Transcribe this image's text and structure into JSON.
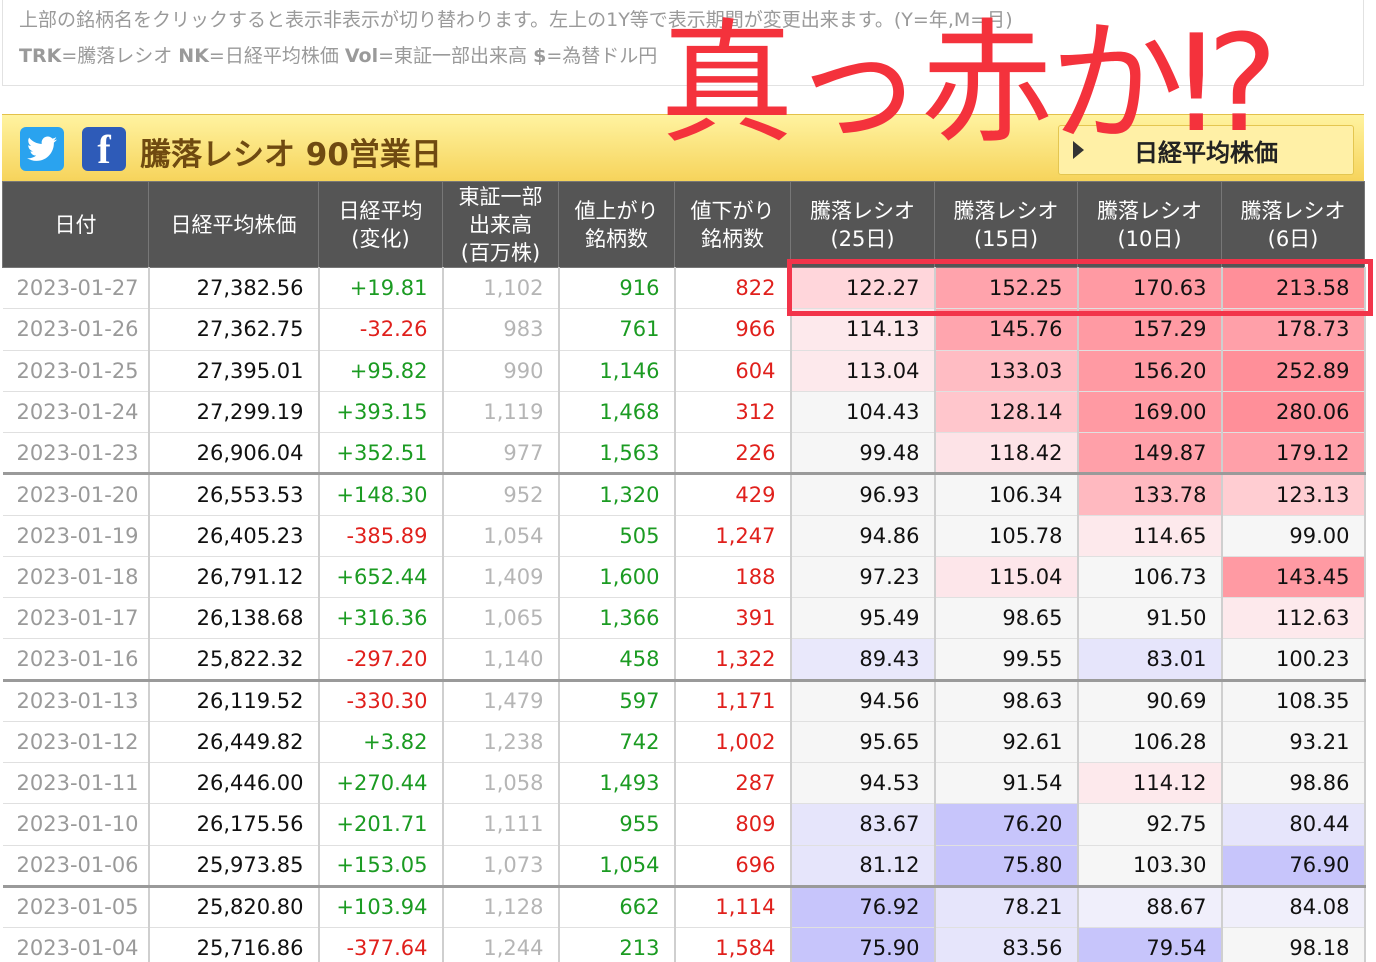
{
  "info": {
    "line1": "上部の銘柄名をクリックすると表示非表示が切り替わります。左上の1Y等で表示期間が変更出来ます。(Y=年,M=月)",
    "line2_key1": "TRK",
    "line2_val1": "=騰落レシオ ",
    "line2_key2": "NK",
    "line2_val2": "=日経平均株価 ",
    "line2_key3": "Vol",
    "line2_val3": "=東証一部出来高 ",
    "line2_key4": "$",
    "line2_val4": "=為替ドル円"
  },
  "panel": {
    "title": "騰落レシオ 90営業日",
    "button": "日経平均株価",
    "twitter_icon": "twitter-icon",
    "facebook_icon": "facebook-icon",
    "facebook_glyph": "f"
  },
  "overlay_text": "真っ赤か⁉",
  "table": {
    "headers": [
      "日付",
      "日経平均株価",
      "日経平均\n(変化)",
      "東証一部\n出来高\n(百万株)",
      "値上がり\n銘柄数",
      "値下がり\n銘柄数",
      "騰落レシオ\n(25日)",
      "騰落レシオ\n(15日)",
      "騰落レシオ\n(10日)",
      "騰落レシオ\n(6日)"
    ],
    "rows": [
      {
        "date": "2023-01-27",
        "nk": "27,382.56",
        "chg": "+19.81",
        "vol": "1,102",
        "up": "916",
        "down": "822",
        "r25": "122.27",
        "r15": "152.25",
        "r10": "170.63",
        "r6": "213.58",
        "bg": [
          "#ffd6db",
          "#ffa3ac",
          "#ff9aa3",
          "#ff8f99"
        ]
      },
      {
        "date": "2023-01-26",
        "nk": "27,362.75",
        "chg": "-32.26",
        "vol": "983",
        "up": "761",
        "down": "966",
        "r25": "114.13",
        "r15": "145.76",
        "r10": "157.29",
        "r6": "178.73",
        "bg": [
          "#fde9ec",
          "#ffa5ae",
          "#ff9aa3",
          "#ffa0a9"
        ]
      },
      {
        "date": "2023-01-25",
        "nk": "27,395.01",
        "chg": "+95.82",
        "vol": "990",
        "up": "1,146",
        "down": "604",
        "r25": "113.04",
        "r15": "133.03",
        "r10": "156.20",
        "r6": "252.89",
        "bg": [
          "#fde9ec",
          "#ffbcc3",
          "#ff9aa3",
          "#ff8f99"
        ]
      },
      {
        "date": "2023-01-24",
        "nk": "27,299.19",
        "chg": "+393.15",
        "vol": "1,119",
        "up": "1,468",
        "down": "312",
        "r25": "104.43",
        "r15": "128.14",
        "r10": "169.00",
        "r6": "280.06",
        "bg": [
          "#f6f6f6",
          "#ffc6cc",
          "#ff9aa3",
          "#ff8f99"
        ]
      },
      {
        "date": "2023-01-23",
        "nk": "26,906.04",
        "chg": "+352.51",
        "vol": "977",
        "up": "1,563",
        "down": "226",
        "r25": "99.48",
        "r15": "118.42",
        "r10": "149.87",
        "r6": "179.12",
        "bg": [
          "#f6f6f6",
          "#fde3e7",
          "#ffa0a9",
          "#ffa0a9"
        ]
      },
      {
        "date": "2023-01-20",
        "nk": "26,553.53",
        "chg": "+148.30",
        "vol": "952",
        "up": "1,320",
        "down": "429",
        "r25": "96.93",
        "r15": "106.34",
        "r10": "133.78",
        "r6": "123.13",
        "bg": [
          "#f6f6f6",
          "#f6f6f6",
          "#ffb9c0",
          "#ffcdd2"
        ],
        "week_end": true
      },
      {
        "date": "2023-01-19",
        "nk": "26,405.23",
        "chg": "-385.89",
        "vol": "1,054",
        "up": "505",
        "down": "1,247",
        "r25": "94.86",
        "r15": "105.78",
        "r10": "114.65",
        "r6": "99.00",
        "bg": [
          "#f6f6f6",
          "#f6f6f6",
          "#fde9ec",
          "#f6f6f6"
        ]
      },
      {
        "date": "2023-01-18",
        "nk": "26,791.12",
        "chg": "+652.44",
        "vol": "1,409",
        "up": "1,600",
        "down": "188",
        "r25": "97.23",
        "r15": "115.04",
        "r10": "106.73",
        "r6": "143.45",
        "bg": [
          "#f6f6f6",
          "#fde6ea",
          "#f6f6f6",
          "#ff9aa3"
        ]
      },
      {
        "date": "2023-01-17",
        "nk": "26,138.68",
        "chg": "+316.36",
        "vol": "1,065",
        "up": "1,366",
        "down": "391",
        "r25": "95.49",
        "r15": "98.65",
        "r10": "91.50",
        "r6": "112.63",
        "bg": [
          "#f6f6f6",
          "#f6f6f6",
          "#f6f6f6",
          "#fde9ec"
        ]
      },
      {
        "date": "2023-01-16",
        "nk": "25,822.32",
        "chg": "-297.20",
        "vol": "1,140",
        "up": "458",
        "down": "1,322",
        "r25": "89.43",
        "r15": "99.55",
        "r10": "83.01",
        "r6": "100.23",
        "bg": [
          "#e9e8fb",
          "#f6f6f6",
          "#e6e5fb",
          "#f6f6f6"
        ]
      },
      {
        "date": "2023-01-13",
        "nk": "26,119.52",
        "chg": "-330.30",
        "vol": "1,479",
        "up": "597",
        "down": "1,171",
        "r25": "94.56",
        "r15": "98.63",
        "r10": "90.69",
        "r6": "108.35",
        "bg": [
          "#f6f6f6",
          "#f6f6f6",
          "#f6f6f6",
          "#f6f6f6"
        ],
        "week_end": true
      },
      {
        "date": "2023-01-12",
        "nk": "26,449.82",
        "chg": "+3.82",
        "vol": "1,238",
        "up": "742",
        "down": "1,002",
        "r25": "95.65",
        "r15": "92.61",
        "r10": "106.28",
        "r6": "93.21",
        "bg": [
          "#f6f6f6",
          "#f6f6f6",
          "#f6f6f6",
          "#f6f6f6"
        ]
      },
      {
        "date": "2023-01-11",
        "nk": "26,446.00",
        "chg": "+270.44",
        "vol": "1,058",
        "up": "1,493",
        "down": "287",
        "r25": "94.53",
        "r15": "91.54",
        "r10": "114.12",
        "r6": "98.86",
        "bg": [
          "#f6f6f6",
          "#f6f6f6",
          "#fde9ec",
          "#f6f6f6"
        ]
      },
      {
        "date": "2023-01-10",
        "nk": "26,175.56",
        "chg": "+201.71",
        "vol": "1,111",
        "up": "955",
        "down": "809",
        "r25": "83.67",
        "r15": "76.20",
        "r10": "92.75",
        "r6": "80.44",
        "bg": [
          "#e6e5fb",
          "#c7c5fb",
          "#f6f6f6",
          "#e6e5fb"
        ]
      },
      {
        "date": "2023-01-06",
        "nk": "25,973.85",
        "chg": "+153.05",
        "vol": "1,073",
        "up": "1,054",
        "down": "696",
        "r25": "81.12",
        "r15": "75.80",
        "r10": "103.30",
        "r6": "76.90",
        "bg": [
          "#e6e5fb",
          "#c7c5fb",
          "#f6f6f6",
          "#c7c5fb"
        ]
      },
      {
        "date": "2023-01-05",
        "nk": "25,820.80",
        "chg": "+103.94",
        "vol": "1,128",
        "up": "662",
        "down": "1,114",
        "r25": "76.92",
        "r15": "78.21",
        "r10": "88.67",
        "r6": "84.08",
        "bg": [
          "#c7c5fb",
          "#e6e5fb",
          "#f0effb",
          "#f0effb"
        ],
        "week_end": true
      },
      {
        "date": "2023-01-04",
        "nk": "25,716.86",
        "chg": "-377.64",
        "vol": "1,244",
        "up": "213",
        "down": "1,584",
        "r25": "75.90",
        "r15": "83.56",
        "r10": "79.54",
        "r6": "98.18",
        "bg": [
          "#c7c5fb",
          "#e6e5fb",
          "#c7c5fb",
          "#f6f6f6"
        ]
      }
    ]
  },
  "colors": {
    "header_bg": "#555555",
    "up_green": "#1b9b22",
    "down_red": "#e0201c",
    "overlay_red": "#f4323c",
    "panel_title_brown": "#6f4a11"
  }
}
